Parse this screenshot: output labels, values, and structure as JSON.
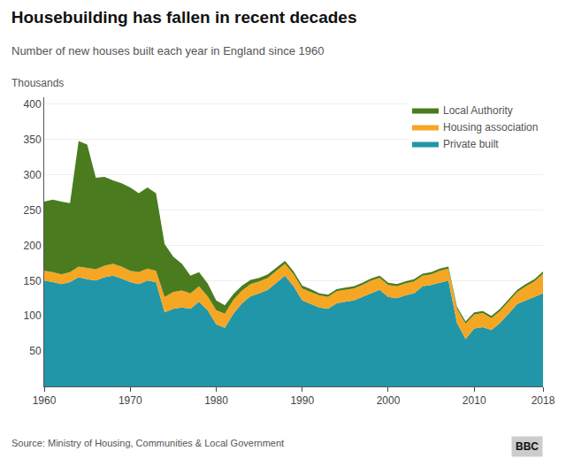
{
  "chart_data": {
    "type": "area",
    "stacked": true,
    "title": "Housebuilding has fallen in recent decades",
    "subtitle": "Number of new houses built each year in England since 1960",
    "ylabel": "Thousands",
    "annotations": [
      "Source: Ministry of Housing, Communities & Local Government",
      "BBC"
    ],
    "x": [
      1960,
      1961,
      1962,
      1963,
      1964,
      1965,
      1966,
      1967,
      1968,
      1969,
      1970,
      1971,
      1972,
      1973,
      1974,
      1975,
      1976,
      1977,
      1978,
      1979,
      1980,
      1981,
      1982,
      1983,
      1984,
      1985,
      1986,
      1987,
      1988,
      1989,
      1990,
      1991,
      1992,
      1993,
      1994,
      1995,
      1996,
      1997,
      1998,
      1999,
      2000,
      2001,
      2002,
      2003,
      2004,
      2005,
      2006,
      2007,
      2008,
      2009,
      2010,
      2011,
      2012,
      2013,
      2014,
      2015,
      2016,
      2017,
      2018
    ],
    "series": [
      {
        "name": "Private built",
        "color": "#2196a8",
        "values": [
          150,
          148,
          145,
          148,
          155,
          152,
          150,
          155,
          157,
          153,
          148,
          145,
          150,
          148,
          105,
          110,
          112,
          110,
          120,
          108,
          88,
          83,
          103,
          118,
          128,
          132,
          137,
          147,
          157,
          142,
          122,
          117,
          112,
          110,
          118,
          120,
          122,
          127,
          132,
          137,
          127,
          125,
          129,
          132,
          142,
          144,
          147,
          150,
          90,
          67,
          82,
          84,
          80,
          90,
          103,
          117,
          122,
          127,
          132
        ]
      },
      {
        "name": "Housing association",
        "color": "#f5a623",
        "values": [
          14,
          14,
          14,
          14,
          15,
          16,
          16,
          16,
          17,
          17,
          16,
          17,
          17,
          16,
          22,
          24,
          24,
          22,
          22,
          20,
          20,
          20,
          20,
          18,
          17,
          17,
          17,
          17,
          17,
          17,
          17,
          17,
          17,
          17,
          17,
          17,
          17,
          17,
          18,
          17,
          17,
          17,
          17,
          17,
          15,
          15,
          17,
          17,
          20,
          22,
          20,
          20,
          17,
          17,
          17,
          17,
          20,
          22,
          28
        ]
      },
      {
        "name": "Local Authority",
        "color": "#4a7c1f",
        "values": [
          98,
          103,
          103,
          98,
          178,
          175,
          130,
          126,
          118,
          118,
          118,
          112,
          115,
          110,
          75,
          50,
          38,
          25,
          20,
          18,
          14,
          12,
          8,
          7,
          6,
          5,
          5,
          5,
          4,
          4,
          4,
          4,
          3,
          3,
          3,
          3,
          3,
          3,
          3,
          3,
          3,
          3,
          3,
          3,
          3,
          3,
          3,
          3,
          3,
          3,
          3,
          3,
          3,
          3,
          3,
          3,
          3,
          3,
          3
        ]
      }
    ],
    "xlim": [
      1960,
      2018
    ],
    "xticks": [
      1960,
      1970,
      1980,
      1990,
      2000,
      2010,
      2018
    ],
    "ylim": [
      0,
      410
    ],
    "yticks": [
      50,
      100,
      150,
      200,
      250,
      300,
      350,
      400
    ],
    "grid": true,
    "legend": "upper right"
  }
}
